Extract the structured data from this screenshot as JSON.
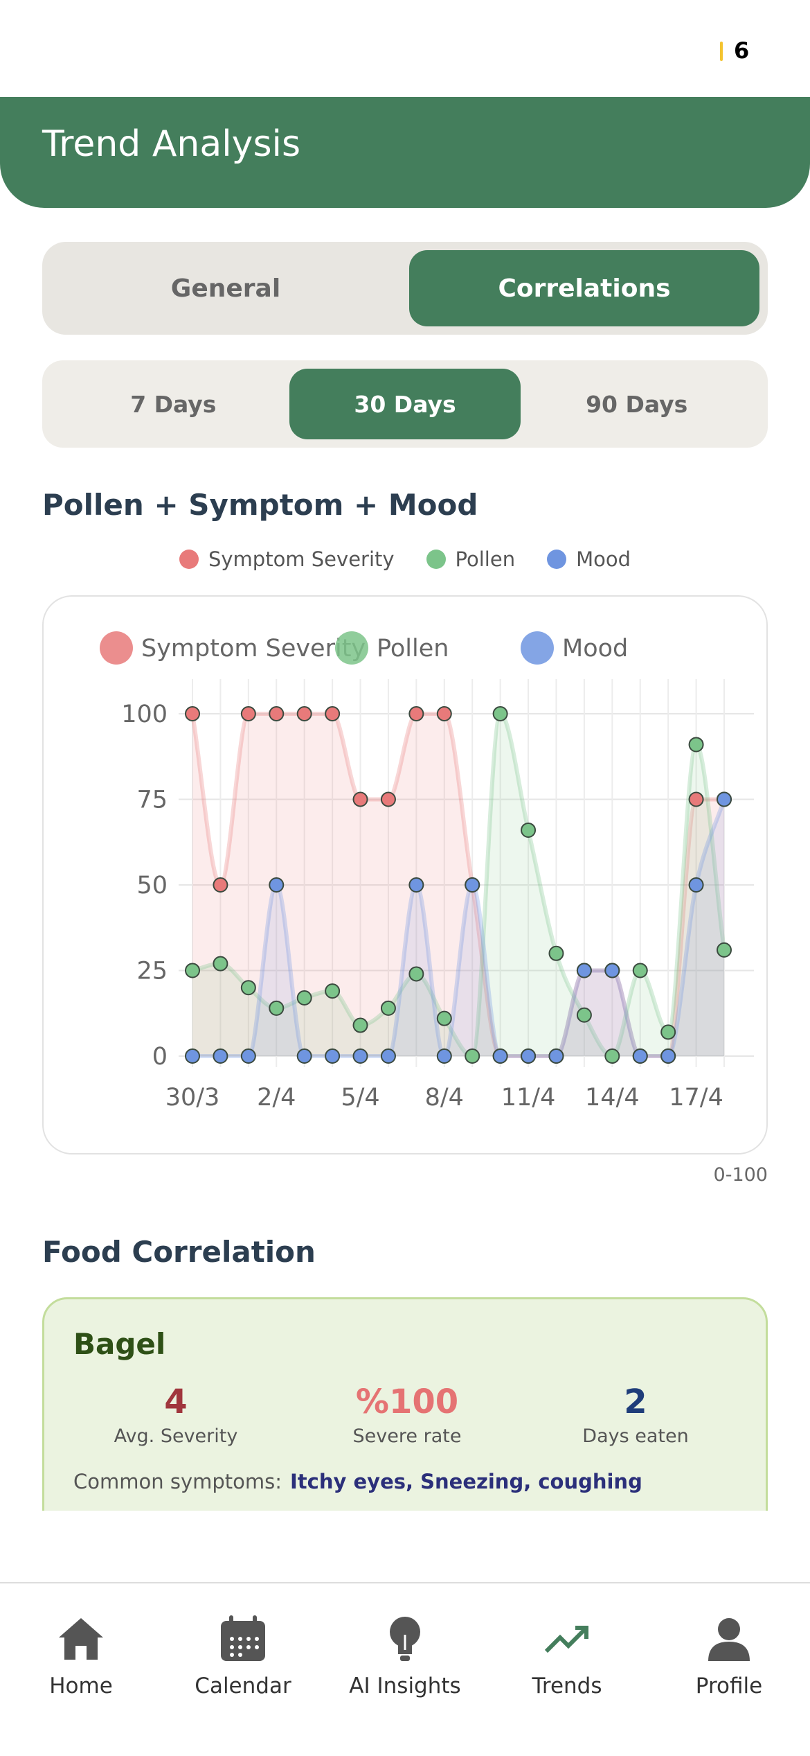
{
  "status": {
    "badge": "6"
  },
  "header": {
    "title": "Trend Analysis"
  },
  "tabs": {
    "items": [
      "General",
      "Correlations"
    ],
    "active": 1
  },
  "ranges": {
    "items": [
      "7 Days",
      "30 Days",
      "90 Days"
    ],
    "active": 1
  },
  "chart_data": {
    "type": "line",
    "title": "Pollen + Symptom + Mood",
    "note": "0-100",
    "categories": [
      "30/3",
      null,
      null,
      "2/4",
      null,
      null,
      "5/4",
      null,
      null,
      "8/4",
      null,
      null,
      "11/4",
      null,
      null,
      "14/4",
      null,
      null,
      "17/4",
      null
    ],
    "series": [
      {
        "name": "Symptom Severity",
        "color": "#e87a7a",
        "values": [
          100,
          50,
          100,
          100,
          100,
          100,
          75,
          75,
          100,
          100,
          50,
          0,
          0,
          0,
          25,
          25,
          0,
          0,
          75,
          75
        ]
      },
      {
        "name": "Pollen",
        "color": "#7cc48a",
        "values": [
          25,
          27,
          20,
          14,
          17,
          19,
          9,
          14,
          24,
          11,
          0,
          100,
          66,
          30,
          12,
          0,
          25,
          7,
          91,
          31
        ]
      },
      {
        "name": "Mood",
        "color": "#6f95e0",
        "values": [
          0,
          0,
          0,
          50,
          0,
          0,
          0,
          0,
          50,
          0,
          50,
          0,
          0,
          0,
          25,
          25,
          0,
          0,
          50,
          75
        ]
      }
    ],
    "ylim": [
      0,
      100
    ],
    "yticks": [
      0,
      25,
      50,
      75,
      100
    ],
    "grid": true,
    "smooth": true
  },
  "food": {
    "title": "Food Correlation",
    "item": "Bagel",
    "stats": [
      {
        "value": "4",
        "label": "Avg. Severity",
        "color": "#a0363d"
      },
      {
        "value": "%100",
        "label": "Severe rate",
        "color": "#e57373"
      },
      {
        "value": "2",
        "label": "Days eaten",
        "color": "#1f3d7a"
      }
    ],
    "symptoms_label": "Common symptoms:",
    "symptoms": "Itchy eyes, Sneezing, coughing"
  },
  "nav": {
    "items": [
      "Home",
      "Calendar",
      "AI Insights",
      "Trends",
      "Profile"
    ],
    "active": 3
  }
}
